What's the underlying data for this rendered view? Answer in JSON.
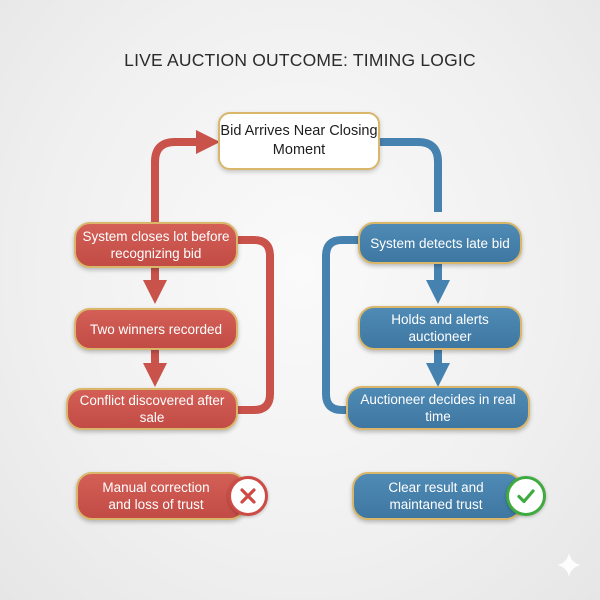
{
  "title": "LIVE AUCTION OUTCOME: TIMING LOGIC",
  "start": {
    "text": "Bid Arrives Near Closing Moment"
  },
  "left_path": {
    "color": "#c9524b",
    "steps": [
      "System closes lot before recognizing bid",
      "Two winners recorded",
      "Conflict discovered after sale"
    ],
    "outcome": "Manual correction and loss of trust",
    "outcome_icon": "x-circle-icon"
  },
  "right_path": {
    "color": "#4682b0",
    "steps": [
      "System detects late bid",
      "Holds and alerts auctioneer",
      "Auctioneer decides in real time"
    ],
    "outcome": "Clear result and maintaned trust",
    "outcome_icon": "check-circle-icon"
  },
  "colors": {
    "border": "#d9b66a",
    "fail": "#cd4a45",
    "success": "#3faa3f"
  }
}
